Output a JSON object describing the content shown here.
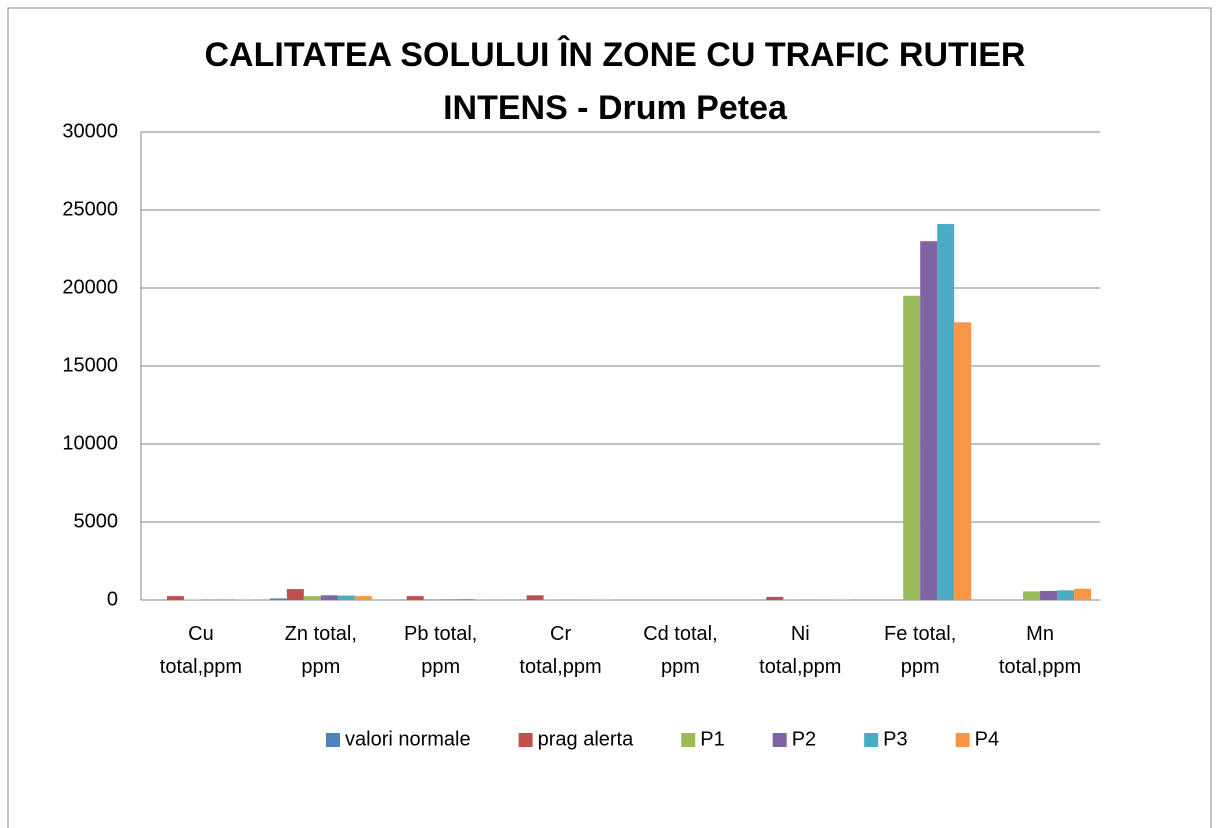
{
  "chart_data": {
    "type": "bar",
    "title": "CALITATEA SOLULUI ÎN ZONE CU TRAFIC RUTIER INTENS - Drum Petea",
    "categories": [
      "Cu total,ppm",
      "Zn total, ppm",
      "Pb total, ppm",
      "Cr total,ppm",
      "Cd total, ppm",
      "Ni total,ppm",
      "Fe total, ppm",
      "Mn total,ppm"
    ],
    "series": [
      {
        "name": "valori normale",
        "color": "#4F81BD",
        "values": [
          20,
          100,
          20,
          30,
          1,
          20,
          null,
          null
        ]
      },
      {
        "name": "prag alerta",
        "color": "#C0504D",
        "values": [
          250,
          700,
          250,
          300,
          5,
          200,
          null,
          null
        ]
      },
      {
        "name": "P1",
        "color": "#9BBB59",
        "values": [
          30,
          250,
          50,
          20,
          1,
          20,
          19500,
          550
        ]
      },
      {
        "name": "P2",
        "color": "#8064A2",
        "values": [
          20,
          300,
          40,
          20,
          1,
          20,
          23000,
          580
        ]
      },
      {
        "name": "P3",
        "color": "#4BACC6",
        "values": [
          40,
          280,
          60,
          20,
          1,
          20,
          24100,
          620
        ]
      },
      {
        "name": "P4",
        "color": "#F79646",
        "values": [
          20,
          250,
          40,
          20,
          1,
          20,
          17800,
          720
        ]
      }
    ],
    "ylim": [
      0,
      30000
    ],
    "yticks": [
      0,
      5000,
      10000,
      15000,
      20000,
      25000,
      30000
    ],
    "grid": true,
    "legend": "bottom"
  }
}
